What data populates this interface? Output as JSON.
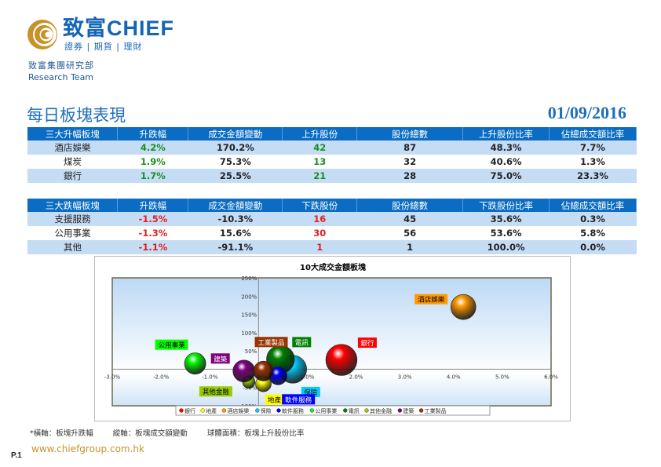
{
  "header": {
    "brand": "致富CHIEF",
    "tagline": "證券 | 期貨 | 理財",
    "dept": "致富集團研究部",
    "team": "Research Team"
  },
  "page_title": "每日板塊表現",
  "date": "01/09/2016",
  "top_table": {
    "headers": [
      "三大升幅板塊",
      "升跌幅",
      "成交金額變動",
      "上升股份",
      "股份總數",
      "上升股份比率",
      "佔總成交額比率"
    ],
    "rows": [
      [
        "酒店娛樂",
        "4.2%",
        "170.2%",
        "42",
        "87",
        "48.3%",
        "7.7%"
      ],
      [
        "煤炭",
        "1.9%",
        "75.3%",
        "13",
        "32",
        "40.6%",
        "1.3%"
      ],
      [
        "銀行",
        "1.7%",
        "25.5%",
        "21",
        "28",
        "75.0%",
        "23.3%"
      ]
    ]
  },
  "bottom_table": {
    "headers": [
      "三大跌幅板塊",
      "升跌幅",
      "成交金額變動",
      "下跌股份",
      "股份總數",
      "下跌股份比率",
      "佔總成交額比率"
    ],
    "rows": [
      [
        "支援服務",
        "-1.5%",
        "-10.3%",
        "16",
        "45",
        "35.6%",
        "0.3%"
      ],
      [
        "公用事業",
        "-1.3%",
        "15.6%",
        "30",
        "56",
        "53.6%",
        "5.8%"
      ],
      [
        "其他",
        "-1.1%",
        "-91.1%",
        "1",
        "1",
        "100.0%",
        "0.0%"
      ]
    ]
  },
  "chart_data": {
    "type": "bubble",
    "title": "10大成交金額板塊",
    "xlim": [
      -3,
      6
    ],
    "ylim": [
      -100,
      250
    ],
    "x_ticks": [
      "-3.0%",
      "-2.0%",
      "-1.0%",
      "0.0%",
      "1.0%",
      "2.0%",
      "3.0%",
      "4.0%",
      "5.0%",
      "6.0%"
    ],
    "y_ticks": [
      "-100%",
      "-50%",
      "0%",
      "50%",
      "100%",
      "150%",
      "200%",
      "250%"
    ],
    "legend_position": "bottom",
    "series": [
      {
        "name": "銀行",
        "x": 1.7,
        "y": 25.5,
        "size": 0.75,
        "color": "#ff0000"
      },
      {
        "name": "地產",
        "x": 0.1,
        "y": -40,
        "size": 0.19,
        "color": "#ffff00"
      },
      {
        "name": "酒店娛樂",
        "x": 4.2,
        "y": 170.2,
        "size": 0.483,
        "color": "#ff9900"
      },
      {
        "name": "保險",
        "x": 0.7,
        "y": 0,
        "size": 0.6,
        "color": "#00ccff"
      },
      {
        "name": "軟件服務",
        "x": 0.4,
        "y": -18,
        "size": 0.25,
        "color": "#0000ff"
      },
      {
        "name": "公用事業",
        "x": -1.3,
        "y": 15.6,
        "size": 0.35,
        "color": "#00ff00"
      },
      {
        "name": "電訊",
        "x": 0.45,
        "y": 27,
        "size": 0.6,
        "color": "#008000"
      },
      {
        "name": "其他金融",
        "x": -0.2,
        "y": -35,
        "size": 0.12,
        "color": "#99cc00"
      },
      {
        "name": "建築",
        "x": -0.3,
        "y": -5,
        "size": 0.37,
        "color": "#800080"
      },
      {
        "name": "工業製品",
        "x": 0.1,
        "y": -5,
        "size": 0.3,
        "color": "#993300"
      }
    ]
  },
  "footnote": [
    "*橫軸：板塊升跌幅",
    "縱軸：板塊成交額變動",
    "球體面積：板塊上升股份比率"
  ],
  "page_no": "P.1",
  "url": "www.chiefgroup.com.hk"
}
